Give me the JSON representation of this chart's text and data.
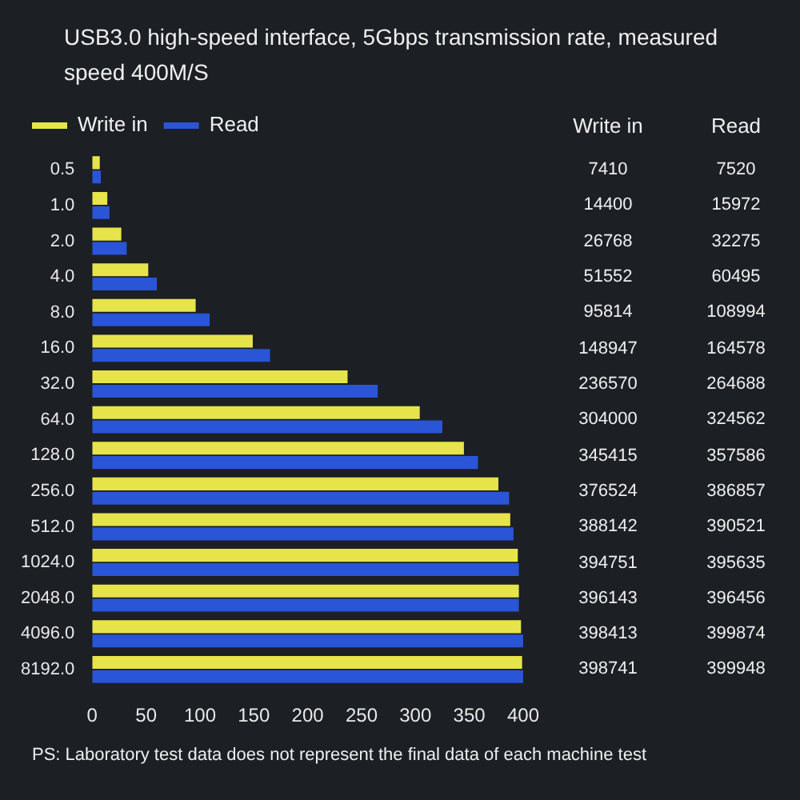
{
  "chart_data": [
    {
      "type": "bar",
      "orientation": "horizontal",
      "title": "USB3.0 high-speed interface, 5Gbps transmission rate, measured speed 400M/S",
      "categories": [
        "0.5",
        "1.0",
        "2.0",
        "4.0",
        "8.0",
        "16.0",
        "32.0",
        "64.0",
        "128.0",
        "256.0",
        "512.0",
        "1024.0",
        "2048.0",
        "4096.0",
        "8192.0"
      ],
      "series": [
        {
          "name": "Write in",
          "color": "#e6e44a",
          "values": [
            7,
            14,
            27,
            52,
            96,
            149,
            237,
            304,
            345,
            377,
            388,
            395,
            396,
            398,
            399
          ]
        },
        {
          "name": "Read",
          "color": "#2a55d6",
          "values": [
            8,
            16,
            32,
            60,
            109,
            165,
            265,
            325,
            358,
            387,
            391,
            396,
            396,
            400,
            400
          ]
        }
      ],
      "xlim": [
        0,
        400
      ],
      "xticks": [
        0,
        50,
        100,
        150,
        200,
        250,
        300,
        350,
        400
      ],
      "legend": "top left",
      "annotations": [
        "PS: Laboratory test data does not represent the final data of each machine test"
      ]
    },
    {
      "type": "other",
      "annotations": [
        "Write in",
        "Read",
        "7410",
        "7520",
        "14400",
        "15972",
        "26768",
        "32275",
        "51552",
        "60495",
        "95814",
        "108994",
        "148947",
        "164578",
        "236570",
        "264688",
        "304000",
        "324562",
        "345415",
        "357586",
        "376524",
        "386857",
        "388142",
        "390521",
        "394751",
        "395635",
        "396143",
        "396456",
        "398413",
        "399874",
        "398741",
        "399948"
      ]
    }
  ]
}
